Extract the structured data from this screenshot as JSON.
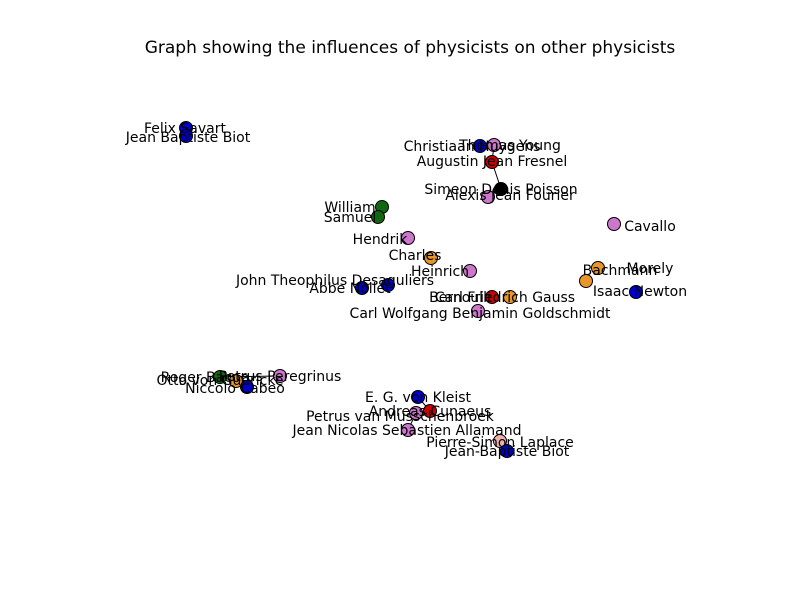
{
  "title": "Graph showing the influences of physicists on other physicists",
  "colors": {
    "blue": "#0000cc",
    "red": "#cc0000",
    "green": "#116611",
    "orange": "#e8962c",
    "violet": "#cc77cc",
    "black": "#000000",
    "pink": "#f0b0b0",
    "gray": "#888888",
    "edge": "#000000"
  },
  "nodes": [
    {
      "id": "savart",
      "label": "Felix Savart",
      "color": "blue"
    },
    {
      "id": "biot1",
      "label": "Jean Baptiste Biot",
      "color": "blue"
    },
    {
      "id": "huygens",
      "label": "Christiaan Huygens",
      "color": "blue"
    },
    {
      "id": "young",
      "label": "Thomas Young",
      "color": "violet"
    },
    {
      "id": "fresnel",
      "label": "Augustin Jean Fresnel",
      "color": "red"
    },
    {
      "id": "poisson",
      "label": "Simeon Denis Poisson",
      "color": "black"
    },
    {
      "id": "fourier",
      "label": "Alexis Jean Fourier",
      "color": "violet"
    },
    {
      "id": "cluster_a",
      "label": "William",
      "color": "green"
    },
    {
      "id": "cluster_b",
      "label": "Samuel",
      "color": "green"
    },
    {
      "id": "cluster_c",
      "label": "Hendrik",
      "color": "violet"
    },
    {
      "id": "cluster_d",
      "label": "Charles",
      "color": "orange"
    },
    {
      "id": "cluster_e",
      "label": "Heinrich",
      "color": "violet"
    },
    {
      "id": "morely",
      "label": "Morely",
      "color": "orange"
    },
    {
      "id": "hachmann",
      "label": "Bachmann",
      "color": "orange"
    },
    {
      "id": "newton",
      "label": "Isaac Newton",
      "color": "blue"
    },
    {
      "id": "avallo",
      "label": "Cavallo",
      "color": "violet"
    },
    {
      "id": "theophilus",
      "label": "John Theophilus Desaguliers",
      "color": "blue"
    },
    {
      "id": "abbe",
      "label": "Abbe Nollet",
      "color": "blue"
    },
    {
      "id": "gauss",
      "label": "Carl Friedrich Gauss",
      "color": "orange"
    },
    {
      "id": "goldschmidt",
      "label": "Carl Wolfgang Benjamin Goldschmidt",
      "color": "violet"
    },
    {
      "id": "bernoulli",
      "label": "Bernoulli",
      "color": "red"
    },
    {
      "id": "peregrinus",
      "label": "Petrus Peregrinus",
      "color": "violet"
    },
    {
      "id": "bacon",
      "label": "Roger Bacon",
      "color": "green"
    },
    {
      "id": "guericke",
      "label": "Otto von Guericke",
      "color": "orange"
    },
    {
      "id": "cabeo",
      "label": "Niccolo Cabeo",
      "color": "blue"
    },
    {
      "id": "kleist",
      "label": "E. G. von Kleist",
      "color": "blue"
    },
    {
      "id": "cunaeus",
      "label": "Andreas Cunaeus",
      "color": "red"
    },
    {
      "id": "musschenbroek",
      "label": "Petrus van Musschenbroek",
      "color": "violet"
    },
    {
      "id": "allamand",
      "label": "Jean Nicolas Sebastien Allamand",
      "color": "violet"
    },
    {
      "id": "laplace",
      "label": "Pierre-Simon Laplace",
      "color": "pink"
    },
    {
      "id": "biot2",
      "label": "Jean-Baptiste Biot",
      "color": "blue"
    }
  ],
  "edges": [
    [
      "savart",
      "biot1"
    ],
    [
      "huygens",
      "young"
    ],
    [
      "young",
      "fresnel"
    ],
    [
      "fresnel",
      "poisson"
    ],
    [
      "poisson",
      "fourier"
    ],
    [
      "peregrinus",
      "bacon"
    ],
    [
      "bacon",
      "guericke"
    ],
    [
      "guericke",
      "cabeo"
    ],
    [
      "kleist",
      "cunaeus"
    ],
    [
      "cunaeus",
      "musschenbroek"
    ],
    [
      "musschenbroek",
      "allamand"
    ],
    [
      "laplace",
      "biot2"
    ]
  ]
}
